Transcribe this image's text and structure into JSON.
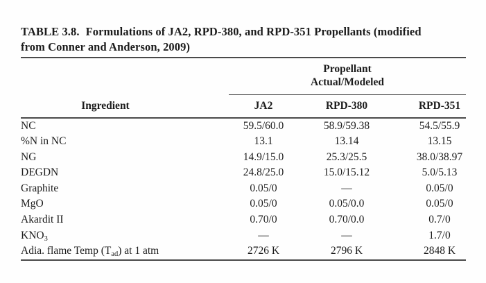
{
  "title": {
    "label": "TABLE 3.8.",
    "line1_rest": "Formulations of JA2, RPD-380, and RPD-351 Propellants (modified",
    "line2": "from Conner and Anderson, 2009)"
  },
  "table": {
    "spanner": {
      "line1": "Propellant",
      "line2": "Actual/Modeled"
    },
    "columns": [
      "Ingredient",
      "JA2",
      "RPD-380",
      "RPD-351"
    ],
    "rows": [
      {
        "pre": "NC",
        "sub": "",
        "post": "",
        "values": [
          "59.5/60.0",
          "58.9/59.38",
          "54.5/55.9"
        ]
      },
      {
        "pre": "%N in NC",
        "sub": "",
        "post": "",
        "values": [
          "13.1",
          "13.14",
          "13.15"
        ]
      },
      {
        "pre": "NG",
        "sub": "",
        "post": "",
        "values": [
          "14.9/15.0",
          "25.3/25.5",
          "38.0/38.97"
        ]
      },
      {
        "pre": "DEGDN",
        "sub": "",
        "post": "",
        "values": [
          "24.8/25.0",
          "15.0/15.12",
          "5.0/5.13"
        ]
      },
      {
        "pre": "Graphite",
        "sub": "",
        "post": "",
        "values": [
          "0.05/0",
          "—",
          "0.05/0"
        ]
      },
      {
        "pre": "MgO",
        "sub": "",
        "post": "",
        "values": [
          "0.05/0",
          "0.05/0.0",
          "0.05/0"
        ]
      },
      {
        "pre": "Akardit II",
        "sub": "",
        "post": "",
        "values": [
          "0.70/0",
          "0.70/0.0",
          "0.7/0"
        ]
      },
      {
        "pre": "KNO",
        "sub": "3",
        "post": "",
        "values": [
          "—",
          "—",
          "1.7/0"
        ]
      },
      {
        "pre": "Adia. flame Temp (T",
        "sub": "ad",
        "post": ") at 1 atm",
        "values": [
          "2726 K",
          "2796 K",
          "2848 K"
        ]
      }
    ]
  },
  "colors": {
    "background": "#fefefe",
    "text": "#1c1c1c",
    "rule_heavy": "#4a4a4a",
    "rule_light": "#555555"
  }
}
